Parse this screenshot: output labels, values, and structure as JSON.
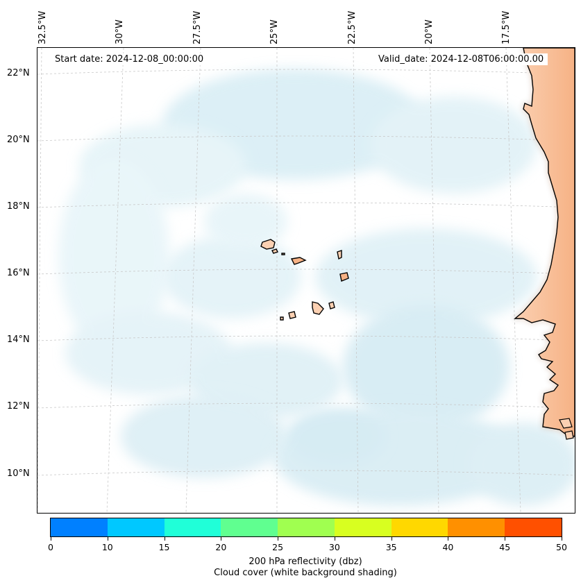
{
  "map": {
    "start_date": "Start date: 2024-12-08_00:00:00",
    "valid_date": "Valid_date: 2024-12-08T06:00:00.00",
    "lon_labels": [
      "32.5°W",
      "30°W",
      "27.5°W",
      "25°W",
      "22.5°W",
      "20°W",
      "17.5°W"
    ],
    "lat_labels": [
      "22°N",
      "20°N",
      "18°N",
      "16°N",
      "14°N",
      "12°N",
      "10°N"
    ],
    "colors": {
      "ocean": "#ffffff",
      "cloud": "#add8e6",
      "land": "#f6b285",
      "coast": "#000000",
      "grid": "#c8c8c8"
    }
  },
  "colorbar": {
    "ticks": [
      "0",
      "10",
      "15",
      "20",
      "25",
      "30",
      "35",
      "40",
      "45",
      "50"
    ],
    "colors": [
      "#0080ff",
      "#00c8ff",
      "#20ffd8",
      "#60ff90",
      "#a0ff50",
      "#d8ff20",
      "#ffd800",
      "#ff9000",
      "#ff5000"
    ],
    "label_line1": "200 hPa reflectivity (dbz)",
    "label_line2": "Cloud cover (white background shading)"
  }
}
